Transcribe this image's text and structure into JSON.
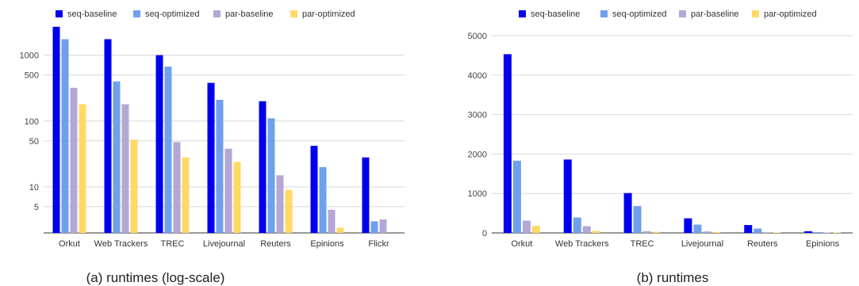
{
  "chart_data": [
    {
      "type": "bar",
      "caption": "(a) runtimes (log-scale)",
      "yscale": "log",
      "ylim": [
        2,
        3000
      ],
      "yticks": [
        5,
        10,
        50,
        100,
        500,
        1000
      ],
      "grid": true,
      "legend_position": "top",
      "categories": [
        "Orkut",
        "Web Trackers",
        "TREC",
        "Livejournal",
        "Reuters",
        "Epinions",
        "Flickr"
      ],
      "series": [
        {
          "name": "seq-baseline",
          "color": "#0000ee",
          "values": [
            2700,
            1750,
            1000,
            380,
            200,
            42,
            28
          ]
        },
        {
          "name": "seq-optimized",
          "color": "#6fa0ec",
          "values": [
            1750,
            400,
            670,
            210,
            110,
            20,
            3
          ]
        },
        {
          "name": "par-baseline",
          "color": "#b4a7d6",
          "values": [
            320,
            180,
            48,
            38,
            15,
            4.5,
            3.2
          ]
        },
        {
          "name": "par-optimized",
          "color": "#ffd966",
          "values": [
            180,
            52,
            28,
            24,
            9,
            2.4,
            null
          ]
        }
      ]
    },
    {
      "type": "bar",
      "caption": "(b) runtimes",
      "yscale": "linear",
      "ylim": [
        0,
        5000
      ],
      "yticks": [
        0,
        1000,
        2000,
        3000,
        4000,
        5000
      ],
      "grid": true,
      "legend_position": "top",
      "categories": [
        "Orkut",
        "Web Trackers",
        "TREC",
        "Livejournal",
        "Reuters",
        "Epinions"
      ],
      "series": [
        {
          "name": "seq-baseline",
          "color": "#0000ee",
          "values": [
            4530,
            1860,
            1010,
            370,
            200,
            42
          ]
        },
        {
          "name": "seq-optimized",
          "color": "#6fa0ec",
          "values": [
            1830,
            390,
            680,
            210,
            110,
            20
          ]
        },
        {
          "name": "par-baseline",
          "color": "#b4a7d6",
          "values": [
            310,
            170,
            45,
            38,
            15,
            4
          ]
        },
        {
          "name": "par-optimized",
          "color": "#ffd966",
          "values": [
            180,
            52,
            28,
            24,
            9,
            2
          ]
        }
      ]
    }
  ]
}
